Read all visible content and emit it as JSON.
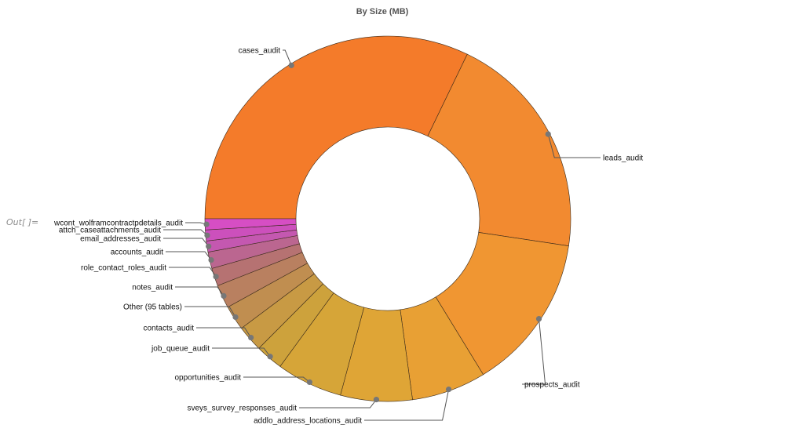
{
  "cell_label": "Out[ ]=",
  "chart_data": {
    "type": "pie",
    "subtype": "donut",
    "title": "By Size (MB)",
    "slices": [
      {
        "label": "cases_audit",
        "value": 26.4,
        "color": "#f47b2a"
      },
      {
        "label": "leads_audit",
        "value": 16.6,
        "color": "#f28a30"
      },
      {
        "label": "prospects_audit",
        "value": 11.4,
        "color": "#f09632"
      },
      {
        "label": "addlo_address_locations_audit",
        "value": 5.4,
        "color": "#e8a034"
      },
      {
        "label": "sveys_survey_responses_audit",
        "value": 5.2,
        "color": "#dfa536"
      },
      {
        "label": "opportunities_audit",
        "value": 4.8,
        "color": "#d6a538"
      },
      {
        "label": "job_queue_audit",
        "value": 2.0,
        "color": "#cda23c"
      },
      {
        "label": "contacts_audit",
        "value": 1.9,
        "color": "#c89a44"
      },
      {
        "label": "Other (95 tables)",
        "value": 1.8,
        "color": "#c08e50"
      },
      {
        "label": "notes_audit",
        "value": 1.7,
        "color": "#b98060"
      },
      {
        "label": "role_contact_roles_audit",
        "value": 1.3,
        "color": "#b67272"
      },
      {
        "label": "accounts_audit",
        "value": 1.2,
        "color": "#bb6690"
      },
      {
        "label": "email_addresses_audit",
        "value": 0.8,
        "color": "#c458b0"
      },
      {
        "label": "attch_caseattachments_audit",
        "value": 0.8,
        "color": "#cc50bc"
      },
      {
        "label": "wcont_wolframcontractpdetails_audit",
        "value": 0.8,
        "color": "#d64ec4"
      }
    ]
  }
}
